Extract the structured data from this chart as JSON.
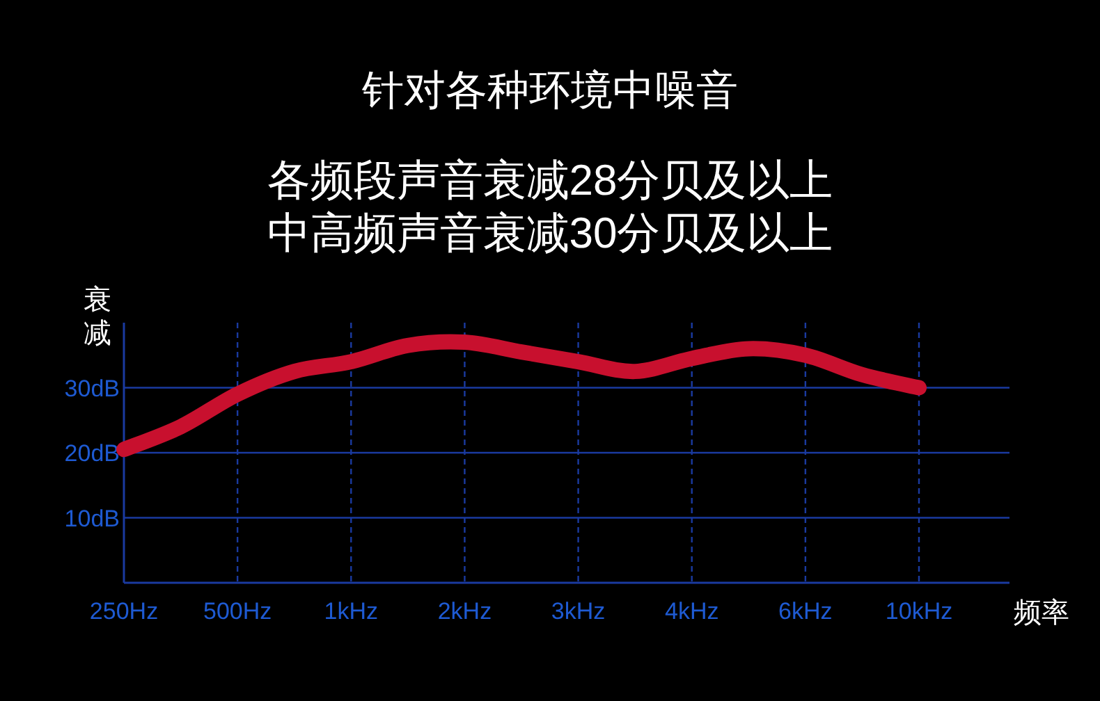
{
  "chart_data": {
    "type": "line",
    "title": "针对各种环境中噪音",
    "subtitle": "各频段声音衰减28分贝及以上",
    "annotations": [
      "中高频声音衰减30分贝及以上"
    ],
    "ylabel": "衰减",
    "xlabel": "频率",
    "categories": [
      "250Hz",
      null,
      "500Hz",
      null,
      "1kHz",
      null,
      "2kHz",
      null,
      "3kHz",
      null,
      "4kHz",
      null,
      "6kHz",
      null,
      "10kHz"
    ],
    "series": [
      {
        "color": "#c8102e",
        "values": [
          20.5,
          24,
          29,
          32.5,
          34,
          36.5,
          37,
          35.5,
          34,
          32.5,
          34.5,
          36,
          35,
          32,
          30
        ]
      }
    ],
    "ylim": [
      0,
      40
    ],
    "yticks": [
      {
        "value": 10,
        "label": "10dB"
      },
      {
        "value": 20,
        "label": "20dB"
      },
      {
        "value": 30,
        "label": "30dB"
      }
    ],
    "grid": true,
    "marker": "none",
    "line_style": "solid"
  }
}
